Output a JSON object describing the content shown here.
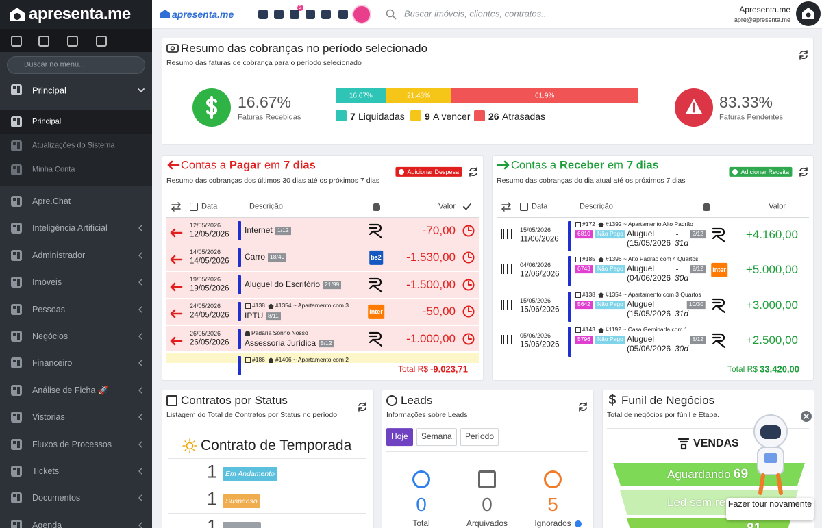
{
  "sidebar": {
    "brand": "apresenta.me",
    "search": "Buscar no menu...",
    "group": "Principal",
    "subitems": [
      "Principal",
      "Atualizações do Sistema",
      "Minha Conta"
    ],
    "items": [
      "Apre.Chat",
      "Inteligência Artificial",
      "Administrador",
      "Imóveis",
      "Pessoas",
      "Negócios",
      "Financeiro",
      "Análise de Ficha 🚀",
      "Vistorias",
      "Fluxos de Processos",
      "Tickets",
      "Documentos",
      "Agenda"
    ]
  },
  "topbar": {
    "brand": "apresenta.me",
    "badge": "2",
    "search": "Buscar imóveis, clientes, contratos...",
    "user_name": "Apresenta.me",
    "user_email": "apre@apresenta.me"
  },
  "summary": {
    "title": "Resumo das cobranças no período selecionado",
    "subtitle": "Resumo das faturas de cobrança para o período selecionado",
    "received": {
      "value": "16.67%",
      "label": "Faturas Recebidas"
    },
    "pending": {
      "value": "83.33%",
      "label": "Faturas Pendentes"
    },
    "progress": [
      {
        "value": 16.67,
        "label": "16.67%",
        "color": "#2ec4b6"
      },
      {
        "value": 21.43,
        "label": "21.43%",
        "color": "#f5c518"
      },
      {
        "value": 61.9,
        "label": "61.9%",
        "color": "#f05454"
      }
    ],
    "legend": [
      {
        "count": "7",
        "label": "Liquidadas"
      },
      {
        "count": "9",
        "label": "A vencer"
      },
      {
        "count": "26",
        "label": "Atrasadas"
      }
    ]
  },
  "payables": {
    "title": [
      "Contas a",
      "Pagar",
      "em",
      "7 dias"
    ],
    "subtitle": "Resumo das cobranças dos últimos 30 dias até os próximos 7 dias",
    "button": "Adicionar Despesa",
    "headers": [
      "Data",
      "Descrição",
      "Valor"
    ],
    "total_label": "Total R$",
    "total": "-9.023,71",
    "rows": [
      {
        "created": "12/05/2026",
        "due": "12/05/2026",
        "description": "Internet",
        "installment": "1/12",
        "amount": "-70,00"
      },
      {
        "created": "14/05/2026",
        "due": "14/05/2026",
        "description": "Carro",
        "installment": "18/49",
        "amount": "-1.530,00",
        "logo": "bs2"
      },
      {
        "created": "19/05/2026",
        "due": "19/05/2026",
        "description": "Aluguel do Escritório",
        "installment": "21/99",
        "amount": "-1.500,00"
      },
      {
        "created": "24/05/2026",
        "due": "24/05/2026",
        "contract": "#138",
        "property": "#1354 ~ Apartamento com 3",
        "description": "IPTU",
        "installment": "8/11",
        "amount": "-50,00",
        "logo": "inter"
      },
      {
        "created": "26/05/2026",
        "due": "26/05/2026",
        "person": "Padaria Sonho Nosso",
        "description": "Assessoria Jurídica",
        "installment": "5/12",
        "amount": "-1.000,00"
      },
      {
        "contract": "#186",
        "property": "#1406 ~ Apartamento com 2"
      }
    ]
  },
  "receivables": {
    "title": [
      "Contas a",
      "Receber",
      "em",
      "7 dias"
    ],
    "subtitle": "Resumo das cobranças do dia atual até os próximos 7 dias",
    "button": "Adicionar Receita",
    "headers": [
      "Data",
      "Descrição",
      "Valor"
    ],
    "total_label": "Total R$",
    "total": "33.420,00",
    "rows": [
      {
        "created": "15/05/2026",
        "due": "11/06/2026",
        "contract": "#172",
        "property": "#1392 ~ Apartamento Alto Padrão",
        "code": "6810",
        "status": "Não Pago",
        "description": "Aluguel",
        "installment": "2/12",
        "start": "(15/05/2026",
        "days": "31d",
        "amount": "+4.160,00"
      },
      {
        "created": "04/06/2026",
        "due": "12/06/2026",
        "contract": "#185",
        "property": "#1396 ~ Alto Padrão com 4 Quartos,",
        "code": "6743",
        "status": "Não Pago",
        "description": "Aluguel",
        "installment": "2/12",
        "start": "(04/06/2026",
        "days": "30d",
        "amount": "+5.000,00",
        "logo": "inter"
      },
      {
        "created": "15/05/2026",
        "due": "15/06/2026",
        "contract": "#138",
        "property": "#1354 ~ Apartamento com 3 Quartos",
        "code": "5642",
        "status": "Não Pago",
        "description": "Aluguel",
        "installment": "10/30",
        "start": "(15/05/2026",
        "days": "31d",
        "amount": "+3.000,00"
      },
      {
        "created": "05/06/2026",
        "due": "15/06/2026",
        "contract": "#143",
        "property": "#1192 ~ Casa Geminada com 1",
        "code": "5796",
        "status": "Não Pago",
        "description": "Aluguel",
        "installment": "8/12",
        "start": "(05/06/2026",
        "days": "30d",
        "amount": "+2.500,00"
      }
    ]
  },
  "contracts": {
    "title": "Contratos por Status",
    "subtitle": "Listagem do Total de Contratos por Status no período",
    "group": "Contrato de Temporada",
    "rows": [
      {
        "count": "1",
        "status": "Em Andamento",
        "color": "#5bc0de"
      },
      {
        "count": "1",
        "status": "Suspenso",
        "color": "#f0ad4e"
      },
      {
        "count": "1",
        "color": "#9aa0a6"
      }
    ]
  },
  "leads": {
    "title": "Leads",
    "subtitle": "Informações sobre Leads",
    "tabs": [
      "Hoje",
      "Semana",
      "Período"
    ],
    "stats": [
      {
        "value": "0",
        "label": "Total",
        "color": "#2f80ed"
      },
      {
        "value": "0",
        "label": "Arquivados",
        "color": "#666666"
      },
      {
        "value": "5",
        "label": "Ignorados",
        "color": "#f07c2a"
      }
    ]
  },
  "funnel": {
    "title": "Funil de Negócios",
    "subtitle": "Total de negócios por fúnil e Etapa.",
    "pipeline": "VENDAS",
    "stages": [
      {
        "name": "Aguardando",
        "count": "69"
      },
      {
        "name": "Led sem resp"
      },
      {
        "count": "81"
      }
    ],
    "tour": "Fazer tour novamente"
  }
}
